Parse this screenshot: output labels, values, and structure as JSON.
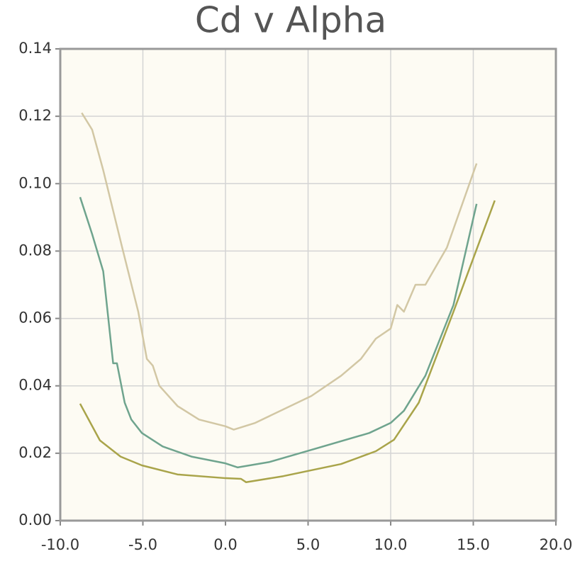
{
  "chart_data": {
    "type": "line",
    "title": "Cd v Alpha",
    "xlim": [
      -10,
      20
    ],
    "xticks": [
      {
        "value": -10,
        "label": "-10.0"
      },
      {
        "value": -5,
        "label": "-5.0"
      },
      {
        "value": 0,
        "label": "0.0"
      },
      {
        "value": 5,
        "label": "5.0"
      },
      {
        "value": 10,
        "label": "10.0"
      },
      {
        "value": 15,
        "label": "15.0"
      },
      {
        "value": 20,
        "label": "20.0"
      }
    ],
    "ylim": [
      0,
      0.14
    ],
    "yticks": [
      {
        "value": 0,
        "label": "0.00"
      },
      {
        "value": 0.02,
        "label": "0.02"
      },
      {
        "value": 0.04,
        "label": "0.04"
      },
      {
        "value": 0.06,
        "label": "0.06"
      },
      {
        "value": 0.08,
        "label": "0.08"
      },
      {
        "value": 0.1,
        "label": "0.10"
      },
      {
        "value": 0.12,
        "label": "0.12"
      },
      {
        "value": 0.14,
        "label": "0.14"
      }
    ],
    "grid": true,
    "series": [
      {
        "color": "#d2c7a4",
        "x": [
          -8.7,
          -8.07,
          -7.4,
          -6.27,
          -5.28,
          -4.76,
          -4.4,
          -4.0,
          -2.9,
          -1.6,
          0,
          0.5,
          1.8,
          3.5,
          5.2,
          7.0,
          8.2,
          9.1,
          10,
          10.4,
          10.8,
          11.5,
          12.1,
          13.4,
          15.2
        ],
        "values": [
          0.121,
          0.116,
          0.104,
          0.0814,
          0.062,
          0.048,
          0.046,
          0.04,
          0.034,
          0.03,
          0.028,
          0.027,
          0.029,
          0.033,
          0.037,
          0.043,
          0.048,
          0.054,
          0.057,
          0.064,
          0.062,
          0.07,
          0.07,
          0.081,
          0.106
        ]
      },
      {
        "color": "#6fa48e",
        "x": [
          -8.8,
          -8.07,
          -7.4,
          -6.8,
          -6.57,
          -6.1,
          -5.7,
          -5.06,
          -3.8,
          -2.06,
          0,
          0.73,
          2.66,
          5.2,
          8.7,
          10,
          10.8,
          12.1,
          13.8,
          15.2
        ],
        "values": [
          0.096,
          0.085,
          0.074,
          0.0467,
          0.0467,
          0.035,
          0.03,
          0.026,
          0.022,
          0.019,
          0.017,
          0.0158,
          0.0174,
          0.021,
          0.026,
          0.029,
          0.0326,
          0.043,
          0.064,
          0.094
        ]
      },
      {
        "color": "#a9a44a",
        "x": [
          -8.8,
          -7.6,
          -6.35,
          -5.06,
          -2.9,
          0,
          0.94,
          1.25,
          3.5,
          7,
          9.1,
          10.2,
          11.7,
          13.8,
          16.3
        ],
        "values": [
          0.0347,
          0.0238,
          0.019,
          0.0164,
          0.0137,
          0.0126,
          0.0124,
          0.0114,
          0.0132,
          0.0168,
          0.0206,
          0.024,
          0.035,
          0.062,
          0.095
        ]
      }
    ]
  }
}
